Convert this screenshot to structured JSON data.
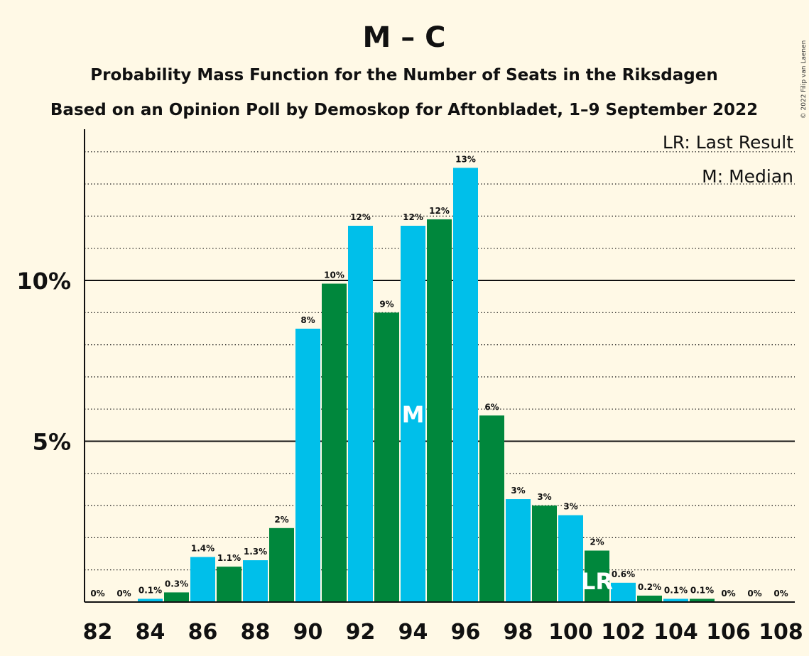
{
  "title": "M – C",
  "subtitle1": "Probability Mass Function for the Number of Seats in the Riksdagen",
  "subtitle2": "Based on an Opinion Poll by Demoskop for Aftonbladet, 1–9 September 2022",
  "copyright": "© 2022 Filip van Laenen",
  "legend": {
    "last_result": "LR: Last Result",
    "median": "M: Median"
  },
  "markers": {
    "median": "M",
    "last_result": "LR"
  },
  "colors": {
    "blue": "#00bfea",
    "green": "#00873c",
    "background": "#fff9e6"
  },
  "chart_data": {
    "type": "bar",
    "x": [
      82,
      83,
      84,
      85,
      86,
      87,
      88,
      89,
      90,
      91,
      92,
      93,
      94,
      95,
      96,
      97,
      98,
      99,
      100,
      101,
      102,
      103,
      104,
      105,
      106,
      107,
      108
    ],
    "values": [
      0,
      0,
      0.1,
      0.3,
      1.4,
      1.1,
      1.3,
      2.3,
      8.5,
      9.9,
      11.7,
      9.0,
      11.7,
      11.9,
      13.5,
      5.8,
      3.2,
      3.0,
      2.7,
      1.6,
      0.6,
      0.2,
      0.1,
      0.1,
      0,
      0,
      0
    ],
    "labels": [
      "0%",
      "0%",
      "0.1%",
      "0.3%",
      "1.4%",
      "1.1%",
      "1.3%",
      "2%",
      "8%",
      "10%",
      "12%",
      "9%",
      "12%",
      "12%",
      "13%",
      "6%",
      "3%",
      "3%",
      "3%",
      "2%",
      "0.6%",
      "0.2%",
      "0.1%",
      "0.1%",
      "0%",
      "0%",
      "0%"
    ],
    "xticks": [
      "82",
      "84",
      "86",
      "88",
      "90",
      "92",
      "94",
      "96",
      "98",
      "100",
      "102",
      "104",
      "106",
      "108"
    ],
    "yticks": [
      {
        "value": 5,
        "label": "5%"
      },
      {
        "value": 10,
        "label": "10%"
      }
    ],
    "ylim": [
      0,
      14.6
    ],
    "median": 94,
    "last_result": 101,
    "grid": true
  }
}
